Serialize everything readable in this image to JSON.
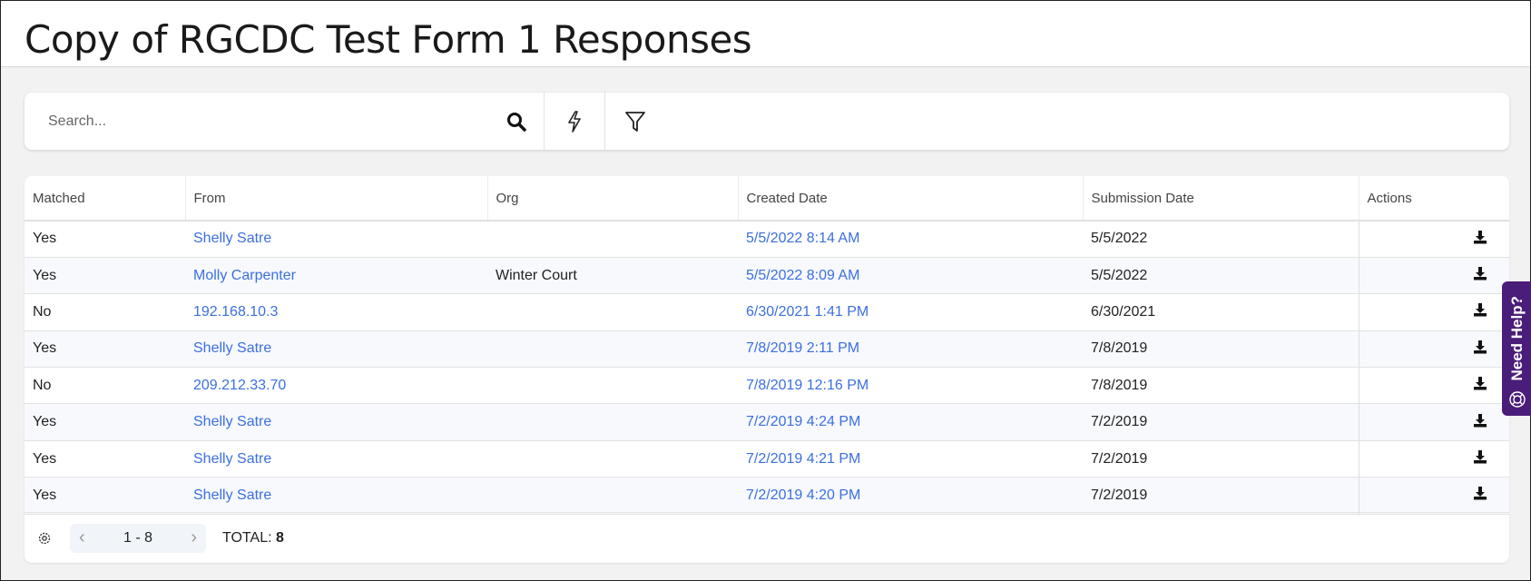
{
  "header": {
    "title": "Copy of RGCDC Test Form 1 Responses"
  },
  "search": {
    "placeholder": "Search...",
    "icons": [
      "search-icon",
      "lightning-icon",
      "filter-icon"
    ]
  },
  "table": {
    "columns": [
      "Matched",
      "From",
      "Org",
      "Created Date",
      "Submission Date",
      "Actions"
    ],
    "rows": [
      {
        "matched": "Yes",
        "from": "Shelly Satre",
        "org": "",
        "created": "5/5/2022 8:14 AM",
        "submitted": "5/5/2022"
      },
      {
        "matched": "Yes",
        "from": "Molly Carpenter",
        "org": "Winter Court",
        "created": "5/5/2022 8:09 AM",
        "submitted": "5/5/2022"
      },
      {
        "matched": "No",
        "from": "192.168.10.3",
        "org": "",
        "created": "6/30/2021 1:41 PM",
        "submitted": "6/30/2021"
      },
      {
        "matched": "Yes",
        "from": "Shelly Satre",
        "org": "",
        "created": "7/8/2019 2:11 PM",
        "submitted": "7/8/2019"
      },
      {
        "matched": "No",
        "from": "209.212.33.70",
        "org": "",
        "created": "7/8/2019 12:16 PM",
        "submitted": "7/8/2019"
      },
      {
        "matched": "Yes",
        "from": "Shelly Satre",
        "org": "",
        "created": "7/2/2019 4:24 PM",
        "submitted": "7/2/2019"
      },
      {
        "matched": "Yes",
        "from": "Shelly Satre",
        "org": "",
        "created": "7/2/2019 4:21 PM",
        "submitted": "7/2/2019"
      },
      {
        "matched": "Yes",
        "from": "Shelly Satre",
        "org": "",
        "created": "7/2/2019 4:20 PM",
        "submitted": "7/2/2019"
      }
    ]
  },
  "footer": {
    "range": "1 - 8",
    "total_label": "TOTAL:",
    "total": "8"
  },
  "help": {
    "label": "Need Help?",
    "color": "#4a1d7a"
  },
  "colors": {
    "link": "#3b6fe0"
  }
}
